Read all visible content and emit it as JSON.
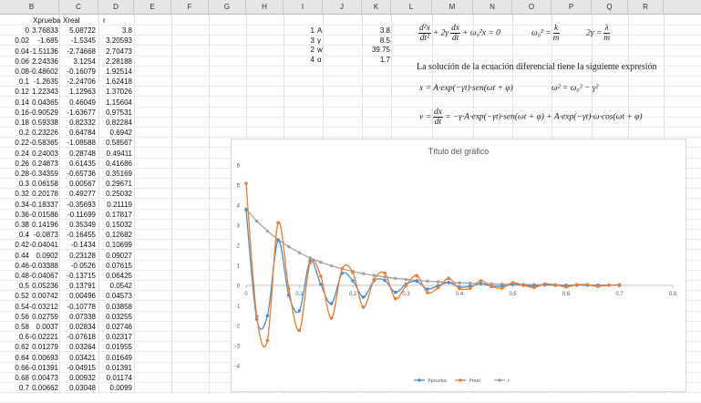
{
  "columns": [
    "B",
    "C",
    "D",
    "E",
    "F",
    "G",
    "H",
    "I",
    "J",
    "K",
    "L",
    "M",
    "N",
    "O",
    "P",
    "Q",
    "R"
  ],
  "table": {
    "headers": [
      "Xprueba",
      "Xreal",
      "r"
    ],
    "t": [
      "0",
      "0.02",
      "0.04",
      "0.06",
      "0.08",
      "0.1",
      "0.12",
      "0.14",
      "0.16",
      "0.18",
      "0.2",
      "0.22",
      "0.24",
      "0.26",
      "0.28",
      "0.3",
      "0.32",
      "0.34",
      "0.36",
      "0.38",
      "0.4",
      "0.42",
      "0.44",
      "0.46",
      "0.48",
      "0.5",
      "0.52",
      "0.54",
      "0.56",
      "0.58",
      "0.6",
      "0.62",
      "0.64",
      "0.66",
      "0.68",
      "0.7"
    ],
    "xprueba": [
      "3.76833",
      "-1.685",
      "-1.51136",
      "2.24336",
      "-0.48602",
      "-1.2635",
      "1.22343",
      "0.04365",
      "-0.90529",
      "0.59338",
      "0.23226",
      "-0.58365",
      "0.24003",
      "0.24873",
      "-0.34359",
      "0.06158",
      "0.20178",
      "-0.18337",
      "-0.01586",
      "0.14196",
      "-0.0873",
      "-0.04041",
      "0.0902",
      "-0.03388",
      "-0.04067",
      "0.05236",
      "0.00742",
      "-0.03212",
      "0.02759",
      "0.0037",
      "-0.02221",
      "0.01279",
      "0.00693",
      "-0.01391",
      "0.00473",
      "0.00662"
    ],
    "xreal": [
      "5.08722",
      "-1.5345",
      "-2.74668",
      "3.1254",
      "-0.16079",
      "-2.24706",
      "1.12963",
      "0.46049",
      "-1.63677",
      "0.82332",
      "0.64784",
      "-1.08588",
      "0.28748",
      "0.61435",
      "-0.65736",
      "0.00567",
      "0.49277",
      "-0.35693",
      "-0.11699",
      "0.35349",
      "-0.16455",
      "-0.1434",
      "0.23128",
      "-0.0526",
      "-0.13715",
      "0.13791",
      "0.00496",
      "-0.10778",
      "0.07338",
      "0.02834",
      "-0.07618",
      "0.03264",
      "0.03421",
      "-0.04915",
      "0.00932",
      "0.03048"
    ],
    "r": [
      "3.8",
      "3.20593",
      "2.70473",
      "2.28188",
      "1.92514",
      "1.62418",
      "1.37026",
      "1.15604",
      "0.97531",
      "0.82284",
      "0.6942",
      "0.58567",
      "0.49411",
      "0.41686",
      "0.35169",
      "0.29671",
      "0.25032",
      "0.21119",
      "0.17817",
      "0.15032",
      "0.12682",
      "0.10699",
      "0.09027",
      "0.07615",
      "0.06425",
      "0.0542",
      "0.04573",
      "0.03858",
      "0.03255",
      "0.02746",
      "0.02317",
      "0.01955",
      "0.01649",
      "0.01391",
      "0.01174",
      "0.0099"
    ]
  },
  "params": [
    {
      "row": "1",
      "name": "A",
      "value": "3.8"
    },
    {
      "row": "3",
      "name": "γ",
      "value": "8.5"
    },
    {
      "row": "2",
      "name": "w",
      "value": "39.75"
    },
    {
      "row": "4",
      "name": "α",
      "value": "1.7"
    }
  ],
  "equations": {
    "ode_d2x": "d²x",
    "ode_dt2": "dt²",
    "ode_mid": "+ 2γ",
    "ode_dx": "dx",
    "ode_dt": "dt",
    "ode_end": "+ ω₀²x = 0",
    "omega0_lhs": "ω₀² =",
    "omega0_k": "k",
    "omega0_m": "m",
    "gamma_lhs": "2γ =",
    "gamma_lambda": "λ",
    "gamma_m": "m",
    "solution_text": "La solución de la ecuación diferencial tiene la siguiente expresión",
    "x_solution": "x = A·exp(−γt)·sen(ωt + φ)",
    "omega_relation": "ω² = ω₀² − γ²",
    "v_lhs": "v =",
    "v_dx": "dx",
    "v_dt": "dt",
    "v_rhs": "= −γ·A·exp(−γt)·sen(ωt + φ) + A·exp(−γt)·ω·cos(ωt + φ)"
  },
  "chart_data": {
    "type": "line",
    "title": "Título del gráfico",
    "xlim": [
      0,
      0.8
    ],
    "ylim": [
      -4,
      6
    ],
    "x_ticks": [
      "0",
      "0.1",
      "0.2",
      "0.3",
      "0.4",
      "0.5",
      "0.6",
      "0.7",
      "0.8"
    ],
    "y_ticks": [
      "-4",
      "-3",
      "-2",
      "-1",
      "0",
      "1",
      "2",
      "3",
      "4",
      "5",
      "6"
    ],
    "x": [
      0,
      0.02,
      0.04,
      0.06,
      0.08,
      0.1,
      0.12,
      0.14,
      0.16,
      0.18,
      0.2,
      0.22,
      0.24,
      0.26,
      0.28,
      0.3,
      0.32,
      0.34,
      0.36,
      0.38,
      0.4,
      0.42,
      0.44,
      0.46,
      0.48,
      0.5,
      0.52,
      0.54,
      0.56,
      0.58,
      0.6,
      0.62,
      0.64,
      0.66,
      0.68,
      0.7
    ],
    "series": [
      {
        "name": "Xprueba",
        "color": "#4a90d0",
        "values": [
          3.76833,
          -1.685,
          -1.51136,
          2.24336,
          -0.48602,
          -1.2635,
          1.22343,
          0.04365,
          -0.90529,
          0.59338,
          0.23226,
          -0.58365,
          0.24003,
          0.24873,
          -0.34359,
          0.06158,
          0.20178,
          -0.18337,
          -0.01586,
          0.14196,
          -0.0873,
          -0.04041,
          0.0902,
          -0.03388,
          -0.04067,
          0.05236,
          0.00742,
          -0.03212,
          0.02759,
          0.0037,
          -0.02221,
          0.01279,
          0.00693,
          -0.01391,
          0.00473,
          0.00662
        ]
      },
      {
        "name": "Xreal",
        "color": "#ed7d31",
        "values": [
          5.08722,
          -1.5345,
          -2.74668,
          3.1254,
          -0.16079,
          -2.24706,
          1.12963,
          0.46049,
          -1.63677,
          0.82332,
          0.64784,
          -1.08588,
          0.28748,
          0.61435,
          -0.65736,
          0.00567,
          0.49277,
          -0.35693,
          -0.11699,
          0.35349,
          -0.16455,
          -0.1434,
          0.23128,
          -0.0526,
          -0.13715,
          0.13791,
          0.00496,
          -0.10778,
          0.07338,
          0.02834,
          -0.07618,
          0.03264,
          0.03421,
          -0.04915,
          0.00932,
          0.03048
        ]
      },
      {
        "name": "r",
        "color": "#a5a5a5",
        "values": [
          3.8,
          3.20593,
          2.70473,
          2.28188,
          1.92514,
          1.62418,
          1.37026,
          1.15604,
          0.97531,
          0.82284,
          0.6942,
          0.58567,
          0.49411,
          0.41686,
          0.35169,
          0.29671,
          0.25032,
          0.21119,
          0.17817,
          0.15032,
          0.12682,
          0.10699,
          0.09027,
          0.07615,
          0.06425,
          0.0542,
          0.04573,
          0.03858,
          0.03255,
          0.02746,
          0.02317,
          0.01955,
          0.01649,
          0.01391,
          0.01174,
          0.0099
        ]
      }
    ],
    "legend_position": "bottom",
    "grid": false
  }
}
